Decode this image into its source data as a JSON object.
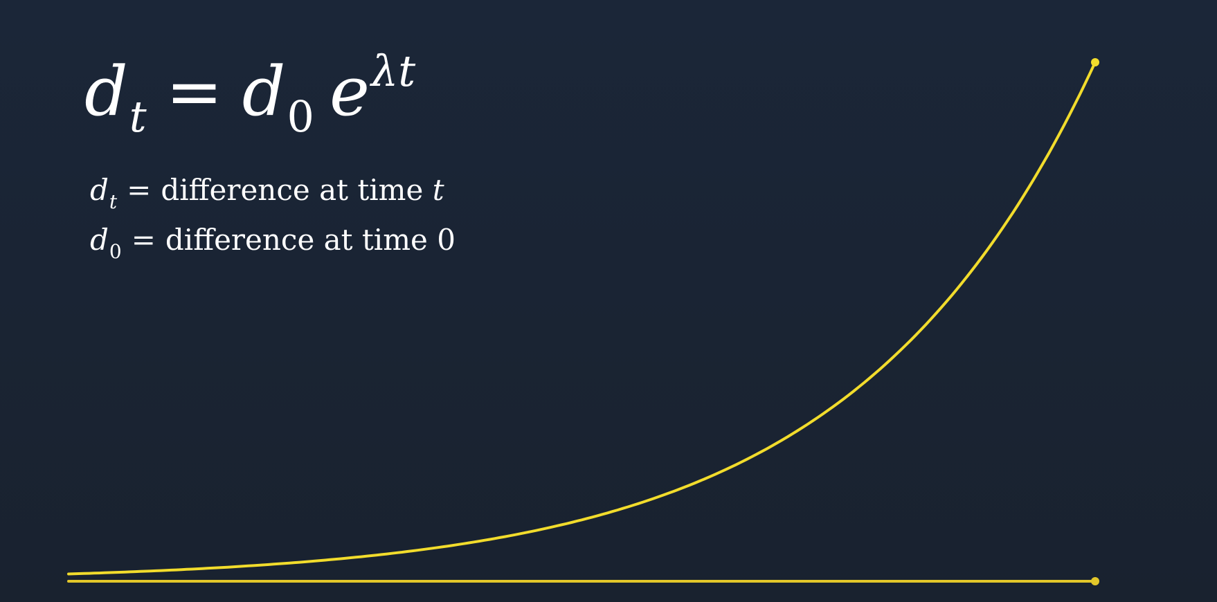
{
  "equation": {
    "lhs_var": "d",
    "lhs_sub": "t",
    "equals": "=",
    "rhs_var": "d",
    "rhs_sub": "0",
    "base": "e",
    "exponent": "λt"
  },
  "definitions": [
    {
      "var": "d",
      "sub": "t",
      "equals": "=",
      "text": "difference at time ",
      "tail": "t"
    },
    {
      "var": "d",
      "sub": "0",
      "equals": "=",
      "text": "difference at time ",
      "tail": "0"
    }
  ],
  "colors": {
    "curve": "#f2dc2c",
    "baseline": "#e2c72a"
  },
  "chart_data": {
    "type": "line",
    "series": [
      {
        "x": [
          0,
          1
        ],
        "y": [
          0,
          0
        ]
      },
      {
        "x": [
          0,
          1
        ],
        "y": [
          0.014,
          1.0
        ]
      }
    ],
    "xlim": [
      0,
      1
    ],
    "ylim": [
      0,
      1
    ]
  }
}
